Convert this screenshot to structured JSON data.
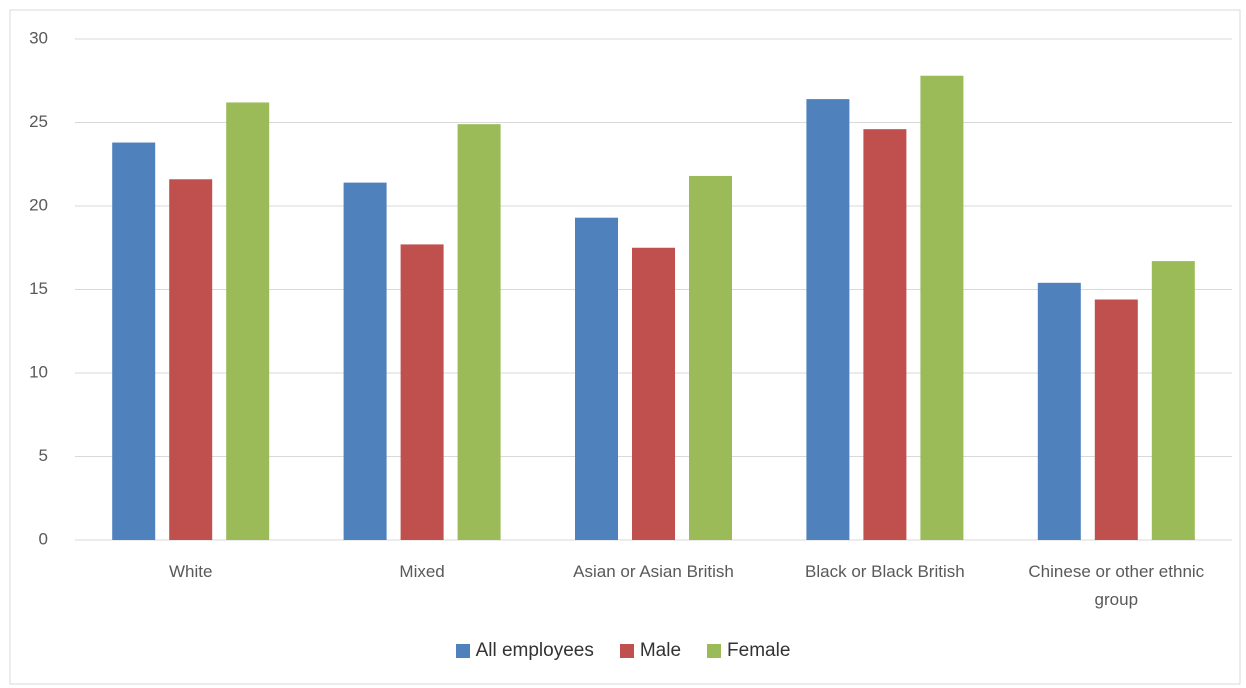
{
  "chart_data": {
    "type": "bar",
    "categories": [
      "White",
      "Mixed",
      "Asian or Asian British",
      "Black or Black British",
      "Chinese or other ethnic group"
    ],
    "series": [
      {
        "name": "All employees",
        "color": "#4f81bd",
        "values": [
          23.8,
          21.4,
          19.3,
          26.4,
          15.4
        ]
      },
      {
        "name": "Male",
        "color": "#c0504d",
        "values": [
          21.6,
          17.7,
          17.5,
          24.6,
          14.4
        ]
      },
      {
        "name": "Female",
        "color": "#9bbb59",
        "values": [
          26.2,
          24.9,
          21.8,
          27.8,
          16.7
        ]
      }
    ],
    "ylim": [
      0,
      30
    ],
    "yticks": [
      0,
      5,
      10,
      15,
      20,
      25,
      30
    ],
    "grid": true,
    "legend": "bottom"
  }
}
